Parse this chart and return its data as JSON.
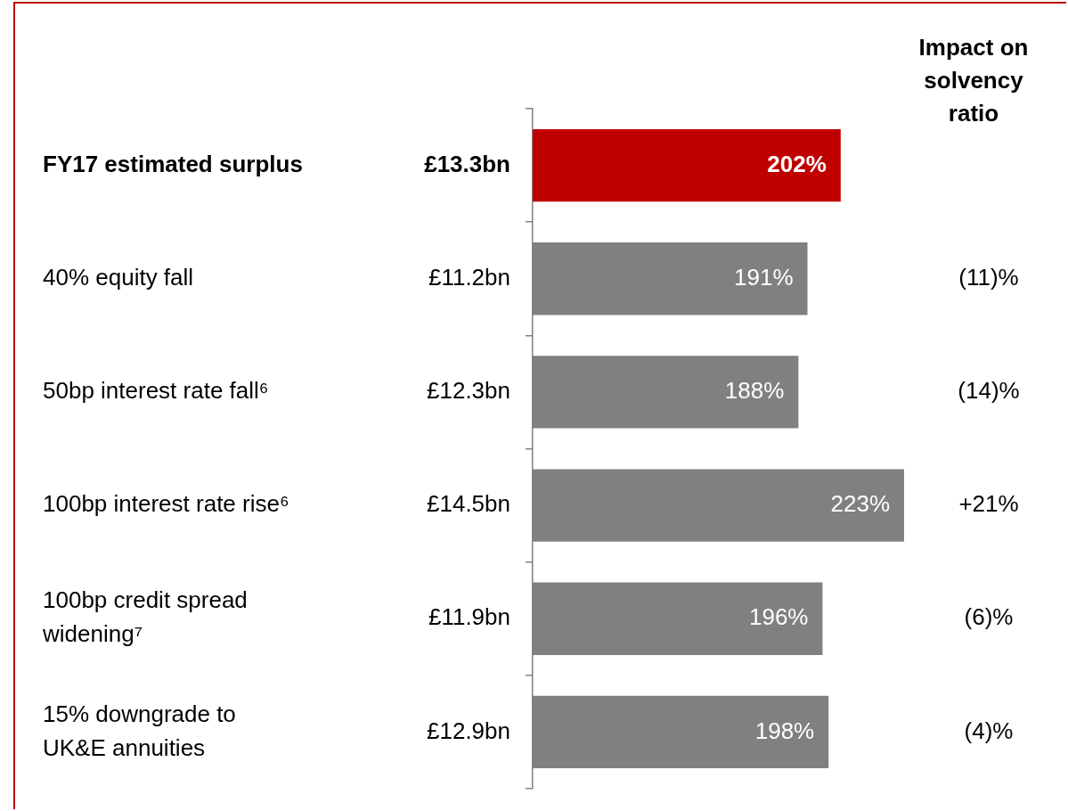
{
  "chart_data": {
    "type": "bar",
    "orientation": "horizontal",
    "categories": [
      "FY17 estimated surplus",
      "40% equity fall",
      "50bp interest rate fall⁶",
      "100bp interest rate rise⁶",
      "100bp credit spread widening⁷",
      "15% downgrade to UK&E annuities"
    ],
    "values": [
      202,
      191,
      188,
      223,
      196,
      198
    ],
    "value_labels": [
      "202%",
      "191%",
      "188%",
      "223%",
      "196%",
      "198%"
    ],
    "colors": [
      "#c00000",
      "#808080",
      "#808080",
      "#808080",
      "#808080",
      "#808080"
    ],
    "xlim": [
      100,
      223
    ],
    "tick_labels": false,
    "grid": false,
    "annotations": [
      "Impact on solvency ratio",
      "£13.3bn",
      "£11.2bn",
      "£12.3bn",
      "£14.5bn",
      "£11.9bn",
      "£12.9bn",
      "(11)%",
      "(14)%",
      "+21%",
      "(6)%",
      "(4)%"
    ]
  }
}
